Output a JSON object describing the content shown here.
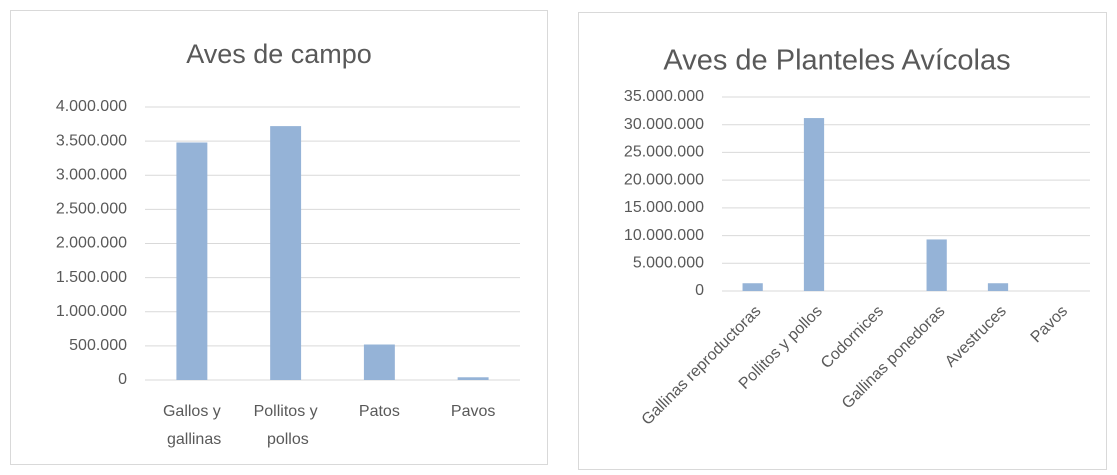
{
  "chart_data": [
    {
      "type": "bar",
      "title": "Aves de campo",
      "categories": [
        "Gallos y gallinas",
        "Pollitos y pollos",
        "Patos",
        "Pavos"
      ],
      "values": [
        3480000,
        3720000,
        520000,
        40000
      ],
      "color": "#95b3d7",
      "ylim": [
        0,
        4000000
      ],
      "yticks": [
        0,
        {
          "value": 500000,
          "label": "500.000"
        },
        {
          "value": 1000000,
          "label": "1.000.000"
        },
        {
          "value": 1500000,
          "label": "1.500.000"
        },
        {
          "value": 2000000,
          "label": "2.000.000"
        },
        {
          "value": 2500000,
          "label": "2.500.000"
        },
        {
          "value": 3000000,
          "label": "3.000.000"
        },
        {
          "value": 3500000,
          "label": "3.500.000"
        },
        {
          "value": 4000000,
          "label": "4.000.000"
        }
      ],
      "grid": true
    },
    {
      "type": "bar",
      "title": "Aves de Planteles Avícolas",
      "categories": [
        "Gallinas reproductoras",
        "Pollitos y pollos",
        "Codornices",
        "Gallinas ponedoras",
        "Avestruces",
        "Pavos"
      ],
      "values": [
        1400000,
        31200000,
        0,
        9300000,
        1400000,
        0
      ],
      "color": "#95b3d7",
      "ylim": [
        0,
        35000000
      ],
      "yticks": [
        0,
        {
          "value": 5000000,
          "label": "5.000.000"
        },
        {
          "value": 10000000,
          "label": "10.000.000"
        },
        {
          "value": 15000000,
          "label": "15.000.000"
        },
        {
          "value": 20000000,
          "label": "20.000.000"
        },
        {
          "value": 25000000,
          "label": "25.000.000"
        },
        {
          "value": 30000000,
          "label": "30.000.000"
        },
        {
          "value": 35000000,
          "label": "35.000.000"
        }
      ],
      "grid": true
    }
  ]
}
